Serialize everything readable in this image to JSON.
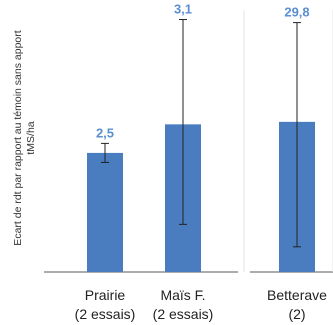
{
  "chart_data": [
    {
      "type": "bar",
      "ylabel": "Ecart de rdt par rapport au témoin sans apport\ntMS/ha",
      "categories": [
        [
          "Prairie",
          "(2 essais)"
        ],
        [
          "Maïs F.",
          "(2 essais)"
        ]
      ],
      "values": [
        2.5,
        3.1
      ],
      "value_labels": [
        "2,5",
        "3,1"
      ],
      "error_low": [
        2.3,
        1.0
      ],
      "error_high": [
        2.7,
        5.3
      ],
      "ylim": [
        0,
        5.5
      ],
      "grid": false
    },
    {
      "type": "bar",
      "categories": [
        [
          "Betterave",
          "(2)"
        ]
      ],
      "values": [
        29.8
      ],
      "value_labels": [
        "29,8"
      ],
      "error_low": [
        5.0
      ],
      "error_high": [
        49.5
      ],
      "ylim": [
        0,
        52
      ],
      "grid": false
    }
  ],
  "colors": {
    "bar": "#4a7dc0",
    "value_label": "#5b8fd0",
    "error_bar": "#222222",
    "axis": "#595959",
    "divider": "#e6e6e6",
    "text": "#222222"
  }
}
